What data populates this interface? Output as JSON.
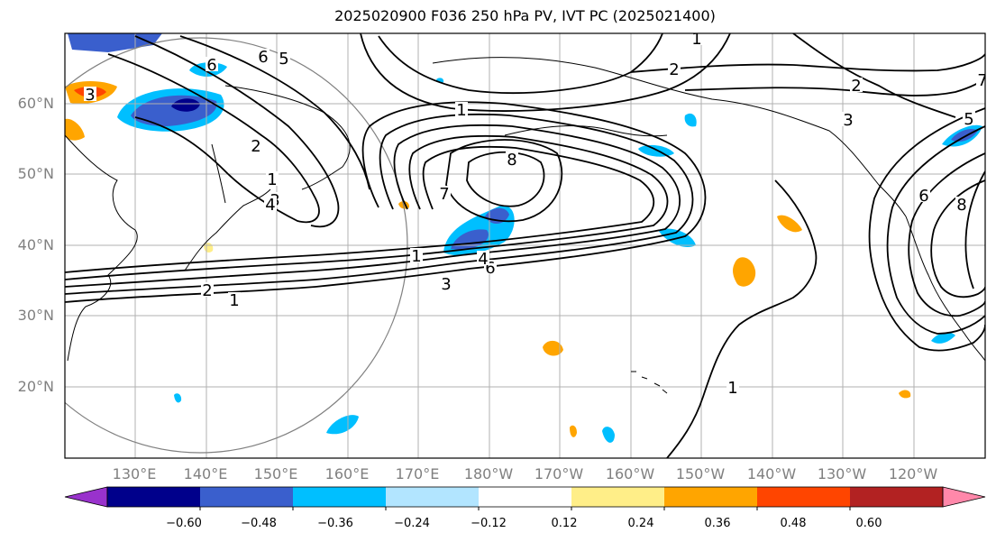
{
  "title": "2025020900 F036 250 hPa PV, IVT PC (2025021400)",
  "lat_labels": [
    "60°N",
    "50°N",
    "40°N",
    "30°N",
    "20°N"
  ],
  "lon_labels": [
    "130°E",
    "140°E",
    "150°E",
    "160°E",
    "170°E",
    "180°W",
    "170°W",
    "160°W",
    "150°W",
    "140°W",
    "130°W",
    "120°W"
  ],
  "colorbar": {
    "ticks": [
      "−0.60",
      "−0.48",
      "−0.36",
      "−0.24",
      "−0.12",
      "0.12",
      "0.24",
      "0.36",
      "0.48",
      "0.60"
    ],
    "colors": [
      "#9932CC",
      "#00008B",
      "#3A5FCD",
      "#00BFFF",
      "#B2E5FF",
      "#FFFFFF",
      "#FFEE88",
      "#FFA500",
      "#FF4500",
      "#B22222",
      "#FF88AA"
    ]
  },
  "contour_labels": [
    "1",
    "2",
    "3",
    "4",
    "5",
    "6",
    "7",
    "8"
  ]
}
